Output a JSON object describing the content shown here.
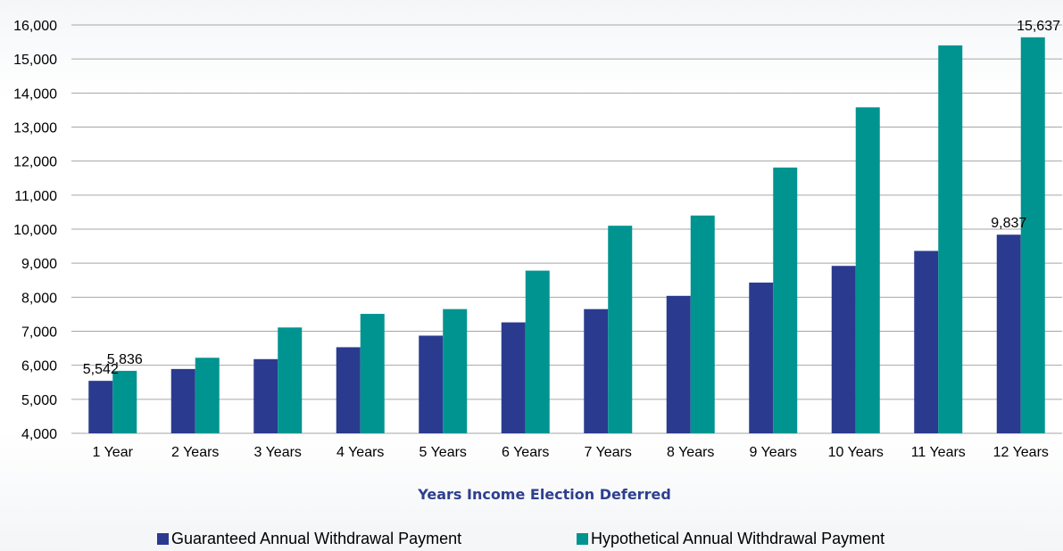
{
  "chart_data": {
    "type": "bar",
    "title": "",
    "xlabel": "Years Income Election Deferred",
    "ylabel": "",
    "ylim": [
      4000,
      16000
    ],
    "yticks": [
      "4,000",
      "5,000",
      "6,000",
      "7,000",
      "8,000",
      "9,000",
      "10,000",
      "11,000",
      "12,000",
      "13,000",
      "14,000",
      "15,000",
      "16,000"
    ],
    "ytick_values": [
      4000,
      5000,
      6000,
      7000,
      8000,
      9000,
      10000,
      11000,
      12000,
      13000,
      14000,
      15000,
      16000
    ],
    "categories": [
      "1 Year",
      "2 Years",
      "3 Years",
      "4 Years",
      "5 Years",
      "6 Years",
      "7 Years",
      "8 Years",
      "9 Years",
      "10 Years",
      "11 Years",
      "12 Years"
    ],
    "grid": "horizontal",
    "legend_position": "bottom",
    "series": [
      {
        "name": "Guaranteed Annual Withdrawal Payment",
        "color": "#2a3b8f",
        "values": [
          5542,
          5890,
          6180,
          6530,
          6870,
          7260,
          7650,
          8040,
          8430,
          8920,
          9360,
          9837
        ]
      },
      {
        "name": "Hypothetical Annual Withdrawal Payment",
        "color": "#009490",
        "values": [
          5836,
          6220,
          7110,
          7510,
          7650,
          8780,
          10100,
          10400,
          11810,
          13580,
          15400,
          15637
        ]
      }
    ],
    "data_labels": [
      {
        "series": 0,
        "index": 0,
        "text": "5,542"
      },
      {
        "series": 1,
        "index": 0,
        "text": "5,836"
      },
      {
        "series": 0,
        "index": 11,
        "text": "9,837"
      },
      {
        "series": 1,
        "index": 11,
        "text": "15,637"
      }
    ]
  }
}
